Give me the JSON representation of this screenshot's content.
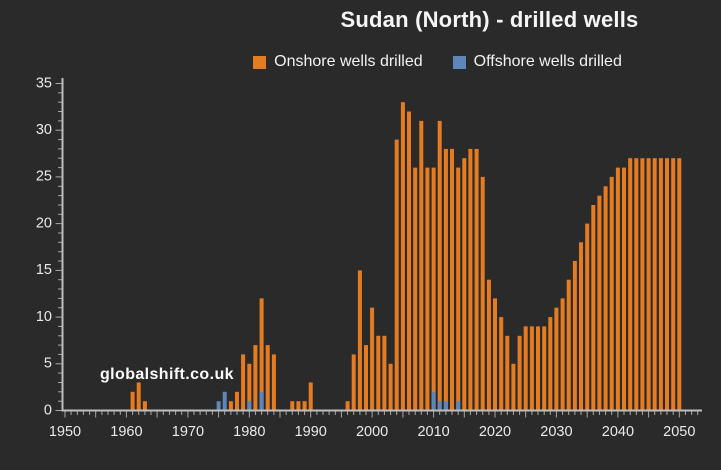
{
  "title": "Sudan (North) - drilled wells",
  "watermark": "globalshift.co.uk",
  "colors": {
    "background": "#2a2a2a",
    "onshore": "#e67c22",
    "offshore": "#5d87ba",
    "axis_line": "#bdbdbd",
    "tick": "#a8a8a8",
    "tick_label": "#e9e9e9"
  },
  "legend": {
    "items": [
      {
        "label": "Onshore wells drilled",
        "color_key": "onshore"
      },
      {
        "label": "Offshore wells drilled",
        "color_key": "offshore"
      }
    ],
    "position": "top"
  },
  "chart_data": {
    "type": "bar",
    "title": "Sudan (North) - drilled wells",
    "xlabel": "",
    "ylabel": "",
    "xlim": [
      1949,
      2053
    ],
    "ylim": [
      0,
      35
    ],
    "grid": false,
    "legend_position": "top",
    "x_tick_labels": [
      1950,
      1960,
      1970,
      1980,
      1990,
      2000,
      2010,
      2020,
      2030,
      2040,
      2050
    ],
    "y_tick_labels": [
      0,
      5,
      10,
      15,
      20,
      25,
      30,
      35
    ],
    "x_minor_tick_every": 1,
    "x_major_tick_every": 5,
    "y_minor_tick_every": 1,
    "y_major_tick_every": 5,
    "series": [
      {
        "name": "Onshore wells drilled",
        "color_key": "onshore",
        "points": [
          [
            1961,
            2
          ],
          [
            1962,
            3
          ],
          [
            1963,
            1
          ],
          [
            1977,
            1
          ],
          [
            1978,
            2
          ],
          [
            1979,
            6
          ],
          [
            1980,
            5
          ],
          [
            1981,
            7
          ],
          [
            1982,
            12
          ],
          [
            1983,
            7
          ],
          [
            1984,
            6
          ],
          [
            1987,
            1
          ],
          [
            1988,
            1
          ],
          [
            1989,
            1
          ],
          [
            1990,
            3
          ],
          [
            1996,
            1
          ],
          [
            1997,
            6
          ],
          [
            1998,
            15
          ],
          [
            1999,
            7
          ],
          [
            2000,
            11
          ],
          [
            2001,
            8
          ],
          [
            2002,
            8
          ],
          [
            2003,
            5
          ],
          [
            2004,
            29
          ],
          [
            2005,
            33
          ],
          [
            2006,
            32
          ],
          [
            2007,
            26
          ],
          [
            2008,
            31
          ],
          [
            2009,
            26
          ],
          [
            2010,
            26
          ],
          [
            2011,
            31
          ],
          [
            2012,
            28
          ],
          [
            2013,
            28
          ],
          [
            2014,
            26
          ],
          [
            2015,
            27
          ],
          [
            2016,
            28
          ],
          [
            2017,
            28
          ],
          [
            2018,
            25
          ],
          [
            2019,
            14
          ],
          [
            2020,
            12
          ],
          [
            2021,
            10
          ],
          [
            2022,
            8
          ],
          [
            2023,
            5
          ],
          [
            2024,
            8
          ],
          [
            2025,
            9
          ],
          [
            2026,
            9
          ],
          [
            2027,
            9
          ],
          [
            2028,
            9
          ],
          [
            2029,
            10
          ],
          [
            2030,
            11
          ],
          [
            2031,
            12
          ],
          [
            2032,
            14
          ],
          [
            2033,
            16
          ],
          [
            2034,
            18
          ],
          [
            2035,
            20
          ],
          [
            2036,
            22
          ],
          [
            2037,
            23
          ],
          [
            2038,
            24
          ],
          [
            2039,
            25
          ],
          [
            2040,
            26
          ],
          [
            2041,
            26
          ],
          [
            2042,
            27
          ],
          [
            2043,
            27
          ],
          [
            2044,
            27
          ],
          [
            2045,
            27
          ],
          [
            2046,
            27
          ],
          [
            2047,
            27
          ],
          [
            2048,
            27
          ],
          [
            2049,
            27
          ],
          [
            2050,
            27
          ]
        ]
      },
      {
        "name": "Offshore wells drilled",
        "color_key": "offshore",
        "points": [
          [
            1975,
            1
          ],
          [
            1976,
            2
          ],
          [
            1980,
            1
          ],
          [
            1982,
            2
          ],
          [
            2010,
            2
          ],
          [
            2011,
            1
          ],
          [
            2012,
            1
          ],
          [
            2014,
            1
          ]
        ]
      }
    ]
  }
}
